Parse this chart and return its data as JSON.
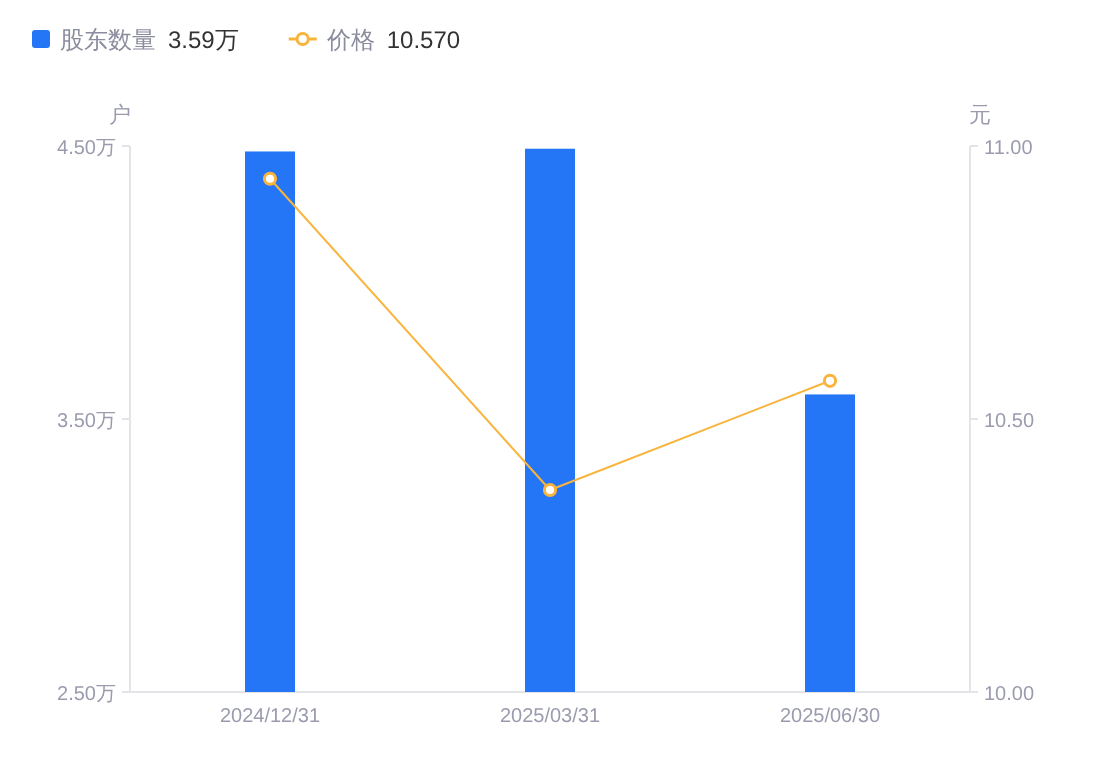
{
  "chart_data": {
    "type": "bar",
    "categories": [
      "2024/12/31",
      "2025/03/31",
      "2025/06/30"
    ],
    "series": [
      {
        "name": "股东数量",
        "color": "#2576f6",
        "values": [
          4.48,
          4.49,
          3.59
        ]
      },
      {
        "name": "价格",
        "color": "#f8b43c",
        "values": [
          10.94,
          10.37,
          10.57
        ],
        "type": "line",
        "axis": "y2"
      }
    ],
    "ylabel": "户",
    "y2label": "元",
    "ylim": [
      2.5,
      4.5
    ],
    "yticks": [
      {
        "value": 2.5,
        "label": "2.50万"
      },
      {
        "value": 3.5,
        "label": "3.50万"
      },
      {
        "value": 4.5,
        "label": "4.50万"
      }
    ],
    "y2lim": [
      10.0,
      11.0
    ],
    "y2ticks": [
      {
        "value": 10.0,
        "label": "10.00"
      },
      {
        "value": 10.5,
        "label": "10.50"
      },
      {
        "value": 11.0,
        "label": "11.00"
      }
    ],
    "marker": "circle",
    "legend": "top left",
    "annotations": [
      "3.59万",
      "10.570"
    ]
  }
}
